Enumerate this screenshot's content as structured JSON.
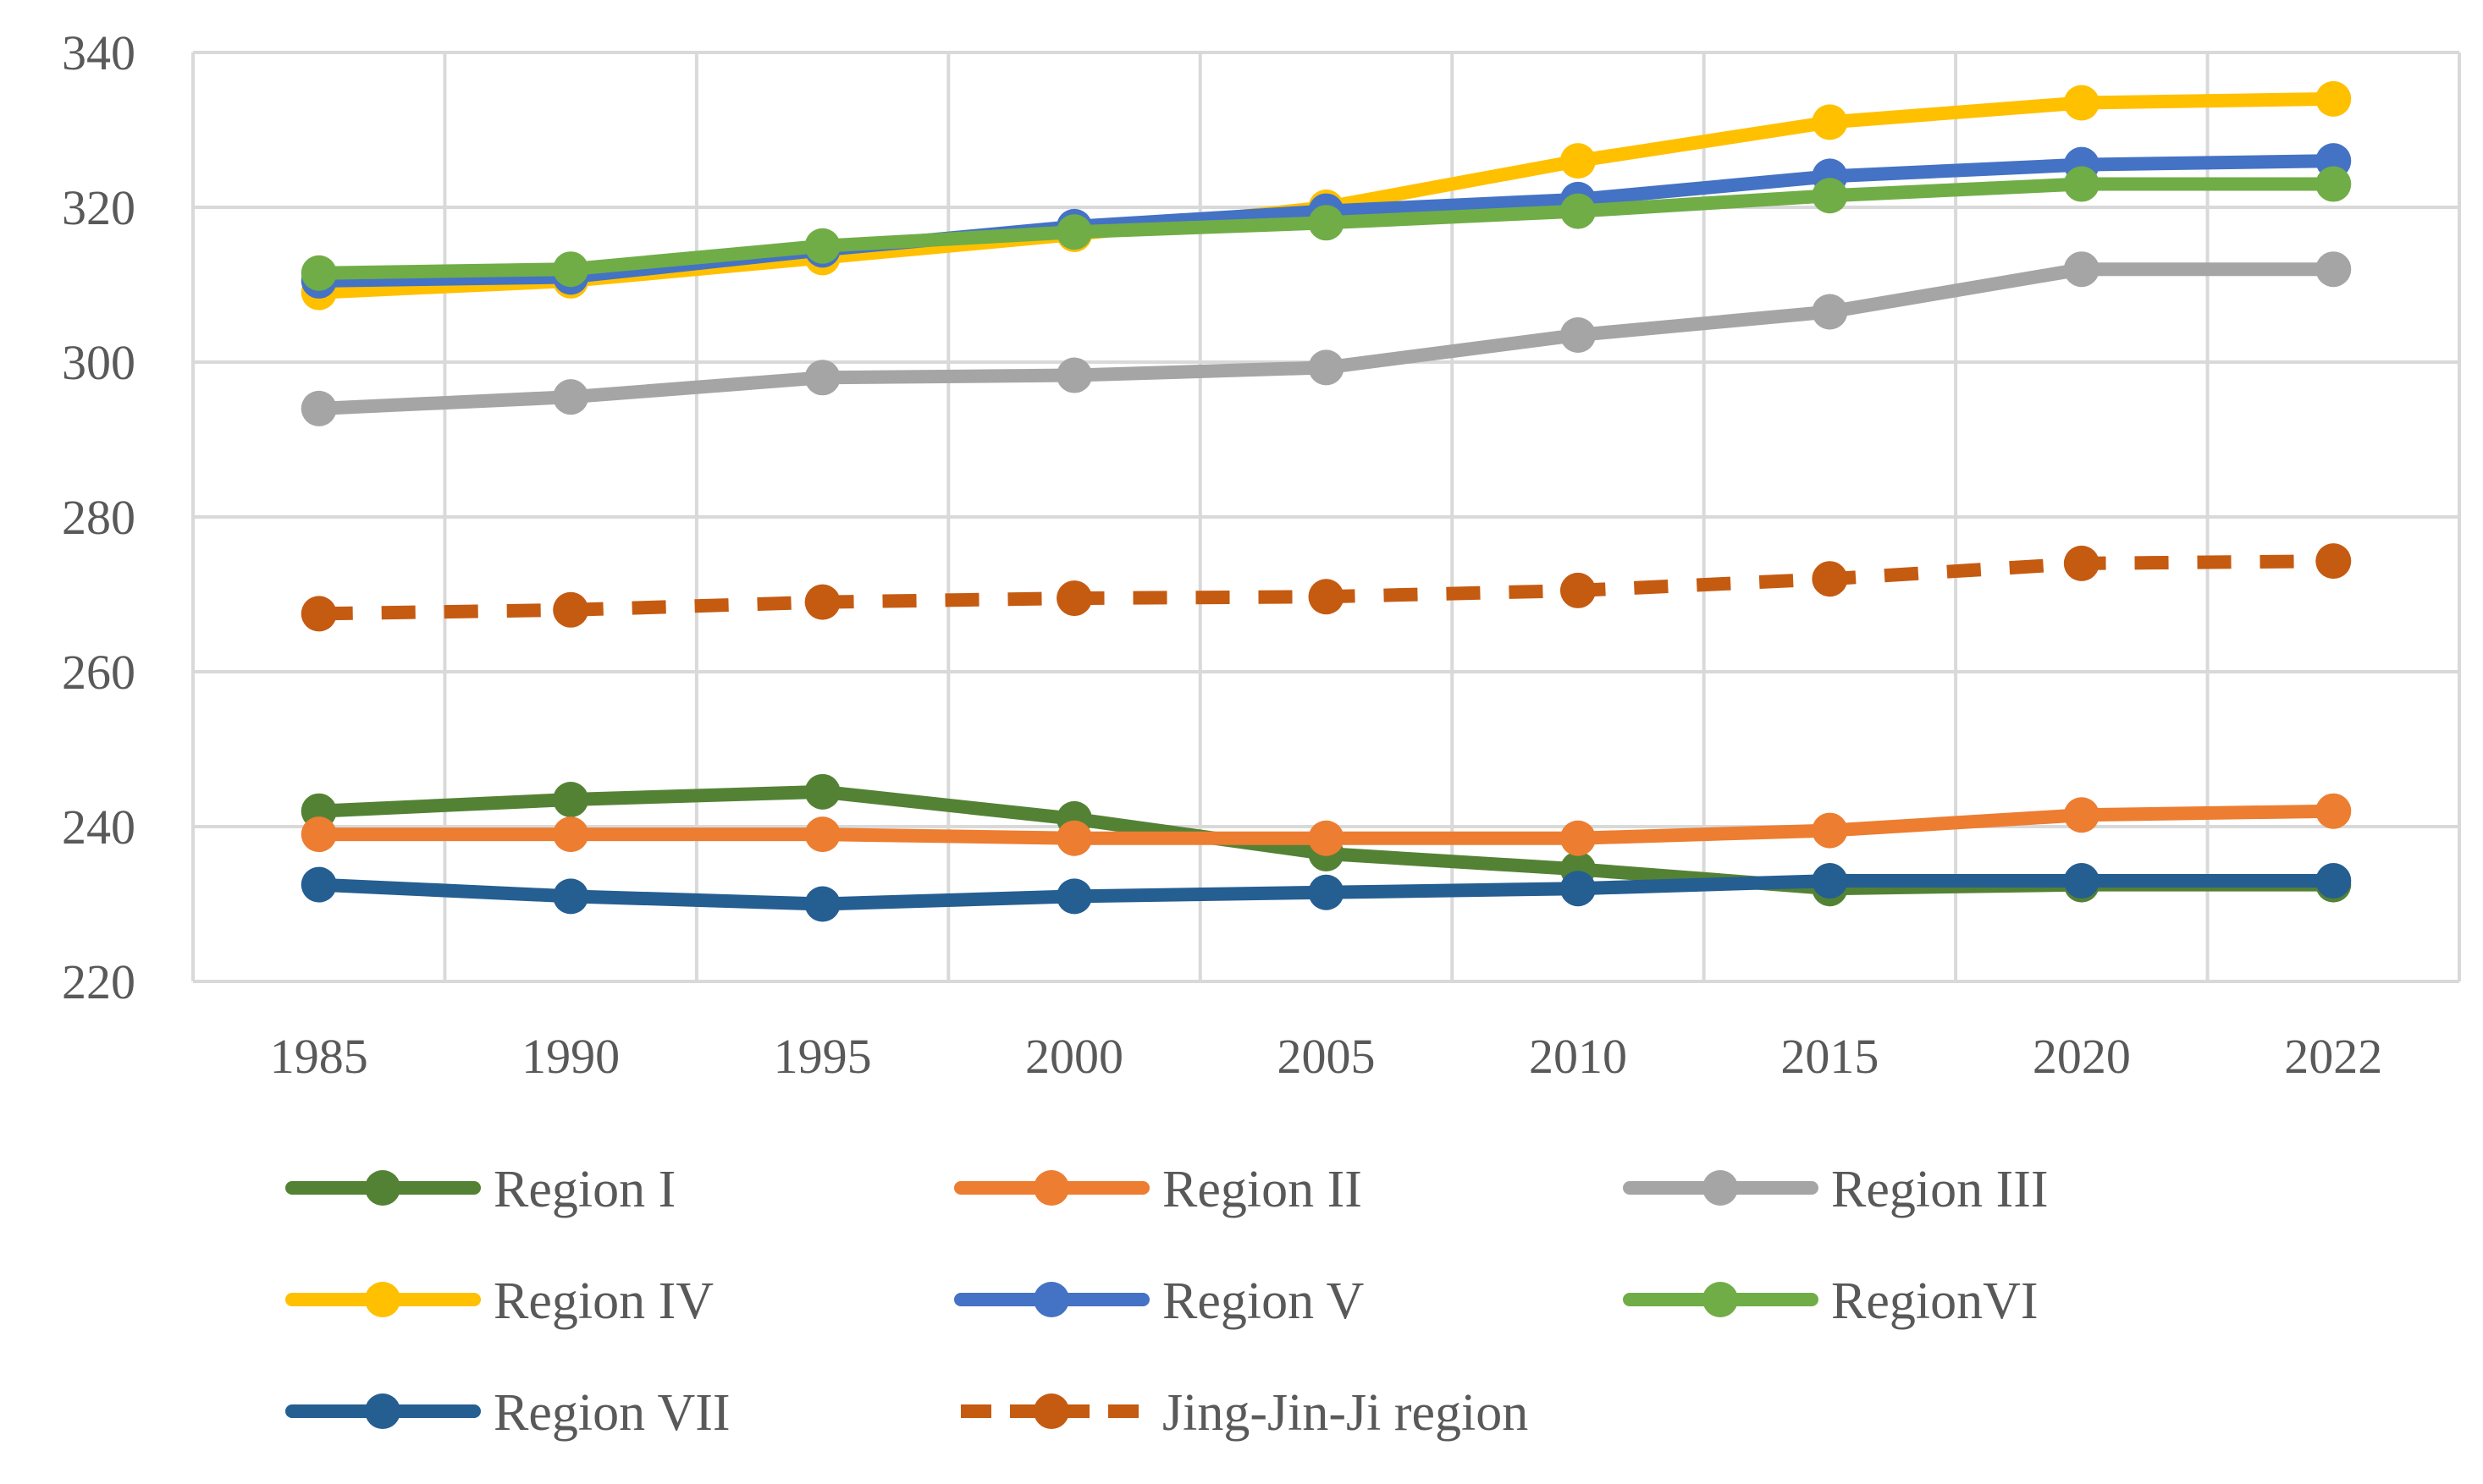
{
  "chart_data": {
    "type": "line",
    "title": "",
    "xlabel": "",
    "ylabel": "",
    "categories": [
      "1985",
      "1990",
      "1995",
      "2000",
      "2005",
      "2010",
      "2015",
      "2020",
      "2022"
    ],
    "ylim": [
      220,
      340
    ],
    "yticks": [
      220,
      240,
      260,
      280,
      300,
      320,
      340
    ],
    "grid": true,
    "legend_position": "bottom",
    "series": [
      {
        "name": "Region I",
        "color": "#548235",
        "dashed": false,
        "values": [
          242,
          243.5,
          244.5,
          241,
          236.5,
          234.5,
          232,
          232.5,
          232.5
        ]
      },
      {
        "name": "Region II",
        "color": "#ED7D31",
        "dashed": false,
        "values": [
          239,
          239,
          239,
          238.5,
          238.5,
          238.5,
          239.5,
          241.5,
          242
        ]
      },
      {
        "name": "Region III",
        "color": "#A5A5A5",
        "dashed": false,
        "values": [
          294,
          295.5,
          298,
          298.3,
          299.3,
          303.5,
          306.5,
          312,
          312
        ]
      },
      {
        "name": "Region IV",
        "color": "#FFC000",
        "dashed": false,
        "values": [
          309,
          310.5,
          313.5,
          316.5,
          320,
          326,
          331,
          333.5,
          334
        ]
      },
      {
        "name": "Region V",
        "color": "#4472C4",
        "dashed": false,
        "values": [
          310.5,
          311,
          314.5,
          317.5,
          319.5,
          321,
          324,
          325.5,
          326
        ]
      },
      {
        "name": "RegionVI",
        "color": "#70AD47",
        "dashed": false,
        "values": [
          311.5,
          312,
          315,
          316.8,
          318,
          319.5,
          321.5,
          323,
          323
        ]
      },
      {
        "name": "Region VII",
        "color": "#255E91",
        "dashed": false,
        "values": [
          232.5,
          231,
          230,
          231,
          231.5,
          232,
          233,
          233,
          233
        ]
      },
      {
        "name": "Jing-Jin-Ji region",
        "color": "#C55A11",
        "dashed": true,
        "values": [
          267.5,
          268,
          269,
          269.5,
          269.7,
          270.5,
          272,
          274,
          274.3
        ]
      }
    ]
  }
}
